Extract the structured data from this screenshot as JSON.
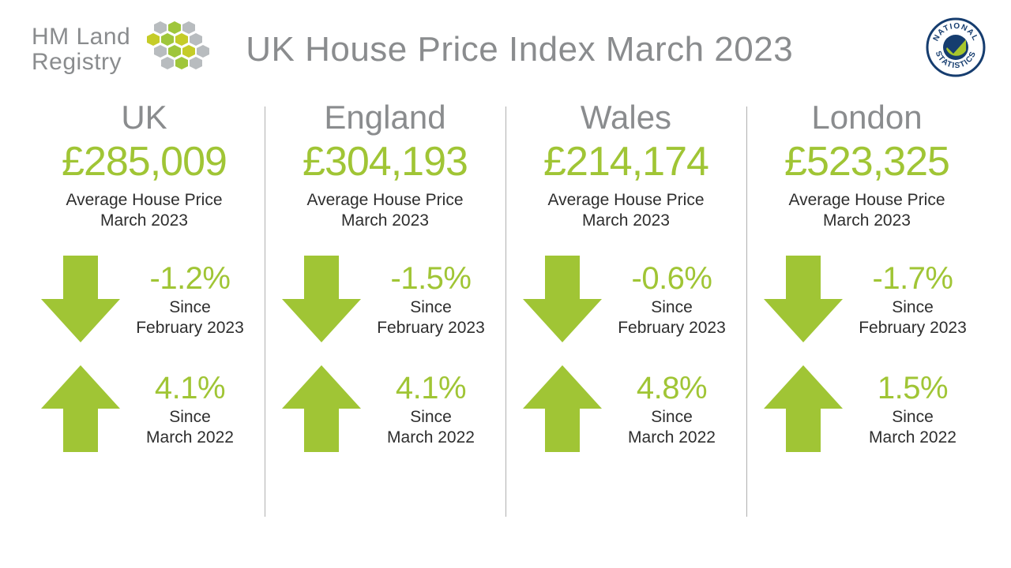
{
  "header": {
    "logo_line1": "HM Land",
    "logo_line2": "Registry",
    "title": "UK House Price Index March 2023"
  },
  "colors": {
    "accent": "#a0c535",
    "muted": "#8a8c8e",
    "text": "#2e2e2e",
    "hex_green": "#9fc63b",
    "hex_olive": "#c5cc28",
    "hex_grey": "#b8bcbf",
    "stat_ring": "#163d6f",
    "stat_tick": "#a7c62c"
  },
  "caption": {
    "line1": "Average House Price",
    "line2": "March 2023",
    "since_word": "Since"
  },
  "panels": [
    {
      "region": "UK",
      "price": "£285,009",
      "monthly": {
        "dir": "down",
        "pct": "-1.2%",
        "since": "February 2023"
      },
      "annual": {
        "dir": "up",
        "pct": "4.1%",
        "since": "March 2022"
      }
    },
    {
      "region": "England",
      "price": "£304,193",
      "monthly": {
        "dir": "down",
        "pct": "-1.5%",
        "since": "February 2023"
      },
      "annual": {
        "dir": "up",
        "pct": "4.1%",
        "since": "March 2022"
      }
    },
    {
      "region": "Wales",
      "price": "£214,174",
      "monthly": {
        "dir": "down",
        "pct": "-0.6%",
        "since": "February 2023"
      },
      "annual": {
        "dir": "up",
        "pct": "4.8%",
        "since": "March 2022"
      }
    },
    {
      "region": "London",
      "price": "£523,325",
      "monthly": {
        "dir": "down",
        "pct": "-1.7%",
        "since": "February 2023"
      },
      "annual": {
        "dir": "up",
        "pct": "1.5%",
        "since": "March 2022"
      }
    }
  ],
  "typography": {
    "title_fontsize": 44,
    "region_fontsize": 42,
    "price_fontsize": 52,
    "caption_fontsize": 21,
    "pct_fontsize": 40
  }
}
